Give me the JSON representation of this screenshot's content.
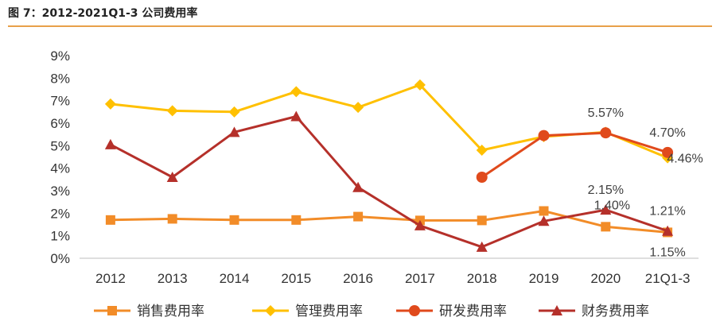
{
  "figure": {
    "title": "图 7：2012-2021Q1-3 公司费用率"
  },
  "colors": {
    "accent_rule": "#e8a04a",
    "sales": "#f28c28",
    "admin": "#ffc000",
    "rnd": "#e04a1c",
    "fin": "#b5302a"
  },
  "chart_data": {
    "type": "line",
    "title": "",
    "xlabel": "",
    "ylabel": "",
    "categories": [
      "2012",
      "2013",
      "2014",
      "2015",
      "2016",
      "2017",
      "2018",
      "2019",
      "2020",
      "21Q1-3"
    ],
    "ylim": [
      0,
      9
    ],
    "yticks": [
      "0%",
      "1%",
      "2%",
      "3%",
      "4%",
      "5%",
      "6%",
      "7%",
      "8%",
      "9%"
    ],
    "grid": false,
    "legend": "bottom",
    "series": [
      {
        "name": "销售费用率",
        "key": "sales",
        "marker": "square",
        "values": [
          1.7,
          1.75,
          1.7,
          1.7,
          1.85,
          1.68,
          1.68,
          2.1,
          1.4,
          1.15
        ]
      },
      {
        "name": "管理费用率",
        "key": "admin",
        "marker": "diamond",
        "values": [
          6.85,
          6.55,
          6.5,
          7.4,
          6.7,
          7.7,
          4.8,
          5.4,
          5.6,
          4.46
        ]
      },
      {
        "name": "研发费用率",
        "key": "rnd",
        "marker": "circle",
        "values": [
          null,
          null,
          null,
          null,
          null,
          null,
          3.6,
          5.45,
          5.57,
          4.7
        ]
      },
      {
        "name": "财务费用率",
        "key": "fin",
        "marker": "triangle",
        "values": [
          5.05,
          3.6,
          5.6,
          6.3,
          3.15,
          1.45,
          0.5,
          1.65,
          2.15,
          1.21
        ]
      }
    ],
    "annotations": [
      {
        "text": "5.57%",
        "series": "rnd",
        "index": 8,
        "pos": "above"
      },
      {
        "text": "4.70%",
        "series": "rnd",
        "index": 9,
        "pos": "above"
      },
      {
        "text": "4.46%",
        "series": "admin",
        "index": 9,
        "pos": "right"
      },
      {
        "text": "2.15%",
        "series": "fin",
        "index": 8,
        "pos": "above"
      },
      {
        "text": "1.40%",
        "series": "sales",
        "index": 8,
        "pos": "above"
      },
      {
        "text": "1.21%",
        "series": "fin",
        "index": 9,
        "pos": "above"
      },
      {
        "text": "1.15%",
        "series": "sales",
        "index": 9,
        "pos": "below"
      }
    ]
  }
}
